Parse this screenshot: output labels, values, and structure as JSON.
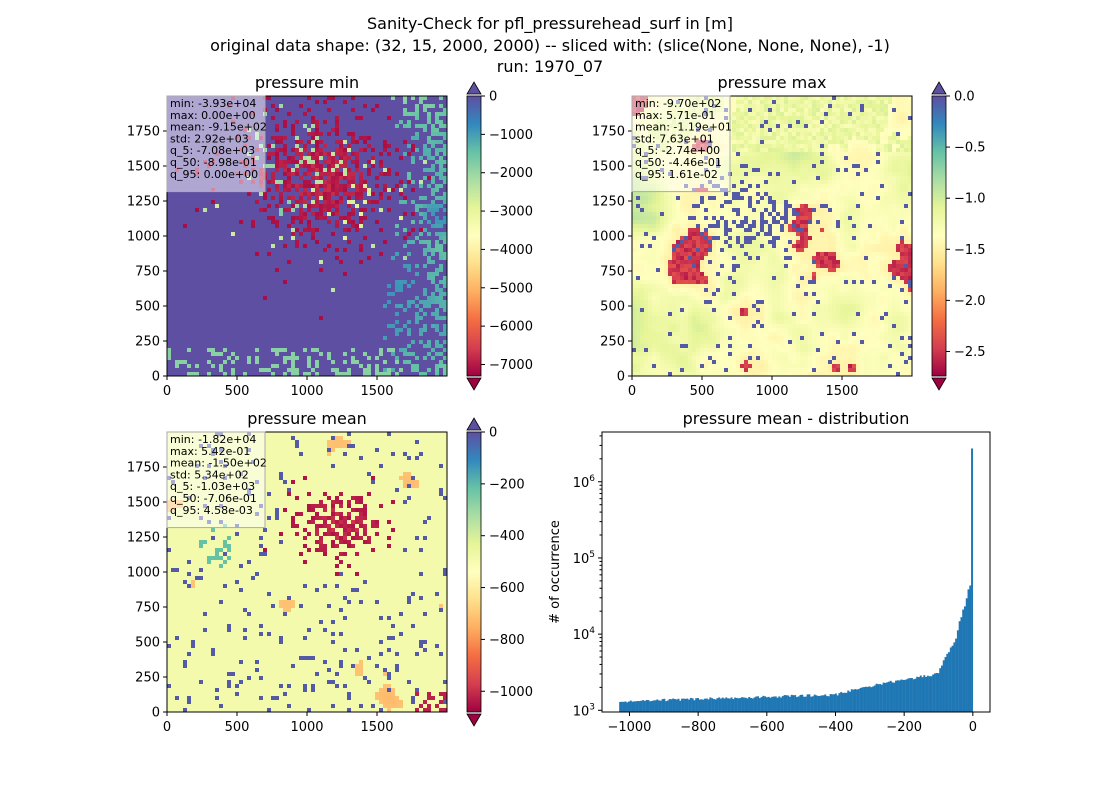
{
  "figure": {
    "suptitle_lines": [
      "Sanity-Check for pfl_pressurehead_surf in [m]",
      "original data shape: (32, 15, 2000, 2000) -- sliced with: (slice(None, None, None), -1)",
      "run: 1970_07"
    ]
  },
  "colors": {
    "bg": "#ffffff",
    "spectral": [
      "#9e0142",
      "#d53e4f",
      "#f46d43",
      "#fdae61",
      "#fee08b",
      "#ffffbf",
      "#e6f598",
      "#abdda4",
      "#66c2a5",
      "#3288bd",
      "#5e4fa2"
    ],
    "hist_bar": "#1f77b4"
  },
  "chart_data": [
    {
      "type": "heatmap",
      "title": "pressure min",
      "x_ticks": [
        "0",
        "500",
        "1000",
        "1500"
      ],
      "y_ticks": [
        "0",
        "250",
        "500",
        "750",
        "1000",
        "1250",
        "1500",
        "1750"
      ],
      "xlim": [
        0,
        2000
      ],
      "ylim": [
        0,
        2000
      ],
      "colormap": "Spectral",
      "colorbar": {
        "ticks": [
          "0",
          "−1000",
          "−2000",
          "−3000",
          "−4000",
          "−5000",
          "−6000",
          "−7000"
        ],
        "vmin": -7300,
        "vmax": 0
      },
      "stats": [
        "min: -3.93e+04",
        "max: 0.00e+00",
        "mean: -9.15e+02",
        "std: 2.92e+03",
        "q_5: -7.08e+03",
        "q_50: -8.98e-01",
        "q_95: 0.00e+00"
      ]
    },
    {
      "type": "heatmap",
      "title": "pressure max",
      "x_ticks": [
        "0",
        "500",
        "1000",
        "1500"
      ],
      "y_ticks": [
        "0",
        "250",
        "500",
        "750",
        "1000",
        "1250",
        "1500",
        "1750"
      ],
      "xlim": [
        0,
        2000
      ],
      "ylim": [
        0,
        2000
      ],
      "colormap": "Spectral",
      "colorbar": {
        "ticks": [
          "0.0",
          "−0.5",
          "−1.0",
          "−1.5",
          "−2.0",
          "−2.5"
        ],
        "vmin": -2.74,
        "vmax": 0.0
      },
      "stats": [
        "min: -9.70e+02",
        "max: 5.71e-01",
        "mean: -1.19e+01",
        "std: 7.63e+01",
        "q_5: -2.74e+00",
        "q_50: -4.46e-01",
        "q_95: 1.61e-02"
      ]
    },
    {
      "type": "heatmap",
      "title": "pressure mean",
      "x_ticks": [
        "0",
        "500",
        "1000",
        "1500"
      ],
      "y_ticks": [
        "0",
        "250",
        "500",
        "750",
        "1000",
        "1250",
        "1500",
        "1750"
      ],
      "xlim": [
        0,
        2000
      ],
      "ylim": [
        0,
        2000
      ],
      "colormap": "Spectral",
      "colorbar": {
        "ticks": [
          "0",
          "−200",
          "−400",
          "−600",
          "−800",
          "−1000"
        ],
        "vmin": -1080,
        "vmax": 0
      },
      "stats": [
        "min: -1.82e+04",
        "max: 5.42e-01",
        "mean: -1.50e+02",
        "std: 5.34e+02",
        "q_5: -1.03e+03",
        "q_50: -7.06e-01",
        "q_95: 4.58e-03"
      ]
    },
    {
      "type": "bar",
      "title": "pressure mean - distribution",
      "ylabel": "# of occurrence",
      "yscale": "log",
      "ylim": [
        950,
        4500000
      ],
      "xlim": [
        -1080,
        50
      ],
      "x_ticks": [
        "−1000",
        "−800",
        "−600",
        "−400",
        "−200",
        "0"
      ],
      "y_ticks": [
        "10^3",
        "10^4",
        "10^5",
        "10^6"
      ],
      "bin_range": [
        -1030,
        0
      ],
      "bin_count": 200,
      "counts_summary": {
        "left_level": 1300,
        "mid_level": 1600,
        "at_-100": 3000,
        "at_-50": 8000,
        "at_-20": 25000,
        "near_zero_peak": 2800000
      }
    }
  ]
}
